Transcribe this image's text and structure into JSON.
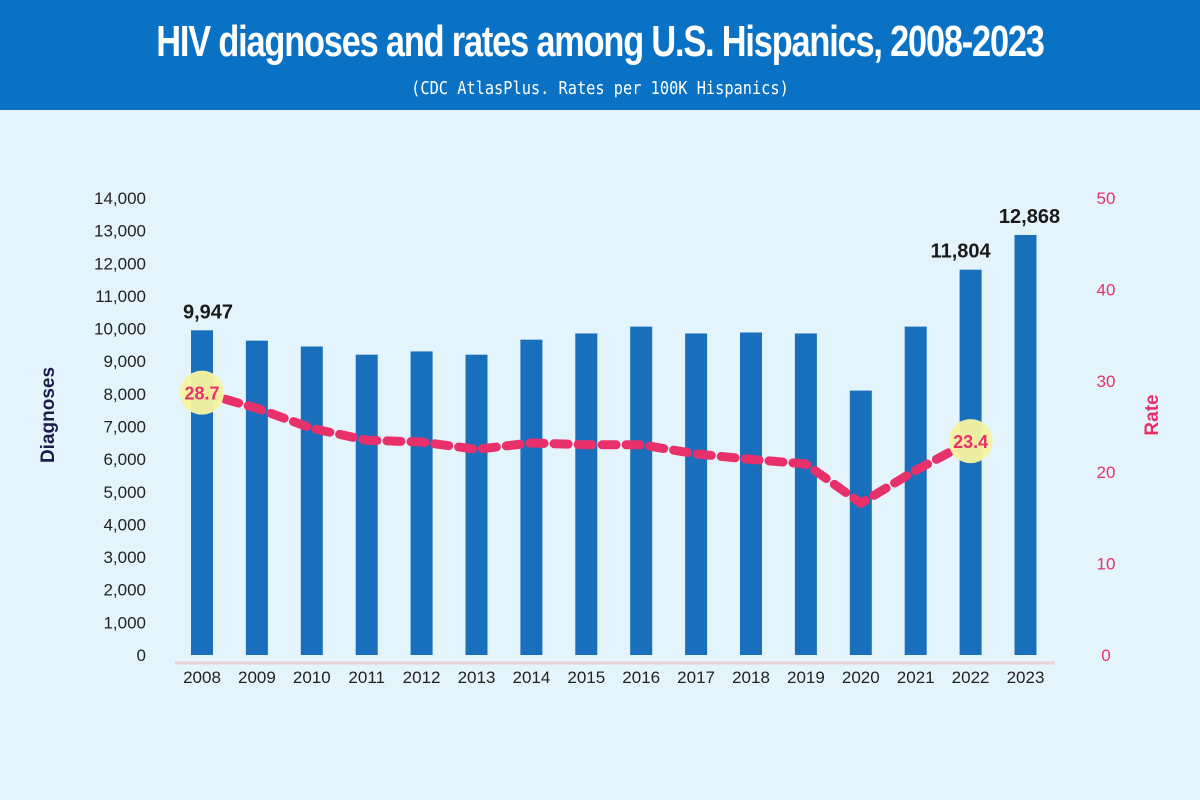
{
  "header": {
    "title": "HIV diagnoses and rates among U.S. Hispanics, 2008-2023",
    "subtitle": "(CDC AtlasPlus. Rates per 100K Hispanics)"
  },
  "colors": {
    "header_bg": "#0a72c4",
    "background": "#e4f4fc",
    "bar": "#1a6fbd",
    "rate_line": "#e8306a",
    "highlight": "#f6f3a0"
  },
  "chart_data": {
    "type": "bar",
    "title": "HIV diagnoses and rates among U.S. Hispanics, 2008-2023",
    "subtitle": "(CDC AtlasPlus. Rates per 100K Hispanics)",
    "xlabel": "",
    "ylabel": "Diagnoses",
    "y2label": "Rate",
    "ylim": [
      0,
      14000
    ],
    "y2lim": [
      0,
      50
    ],
    "yticks": [
      "0",
      "1,000",
      "2,000",
      "3,000",
      "4,000",
      "5,000",
      "6,000",
      "7,000",
      "8,000",
      "9,000",
      "10,000",
      "11,000",
      "12,000",
      "13,000",
      "14,000"
    ],
    "y2ticks": [
      "0",
      "10",
      "20",
      "30",
      "40",
      "50"
    ],
    "grid": false,
    "categories": [
      "2008",
      "2009",
      "2010",
      "2011",
      "2012",
      "2013",
      "2014",
      "2015",
      "2016",
      "2017",
      "2018",
      "2019",
      "2020",
      "2021",
      "2022",
      "2023"
    ],
    "series": [
      {
        "name": "Diagnoses",
        "type": "bar",
        "axis": "left",
        "values": [
          9947,
          9630,
          9450,
          9200,
          9300,
          9200,
          9660,
          9850,
          10060,
          9850,
          9880,
          9850,
          8100,
          10060,
          11804,
          12868
        ]
      },
      {
        "name": "Rate",
        "type": "line",
        "style": "dashed",
        "axis": "right",
        "values": [
          28.7,
          27.0,
          24.8,
          23.5,
          23.3,
          22.5,
          23.2,
          23.0,
          23.0,
          22.0,
          21.4,
          20.9,
          16.6,
          20.2,
          23.4,
          null
        ]
      }
    ],
    "annotations": [
      {
        "series": "Diagnoses",
        "category": "2008",
        "text": "9,947"
      },
      {
        "series": "Diagnoses",
        "category": "2022",
        "text": "11,804"
      },
      {
        "series": "Diagnoses",
        "category": "2023",
        "text": "12,868"
      },
      {
        "series": "Rate",
        "category": "2008",
        "text": "28.7",
        "highlight": true
      },
      {
        "series": "Rate",
        "category": "2022",
        "text": "23.4",
        "highlight": true
      }
    ]
  }
}
